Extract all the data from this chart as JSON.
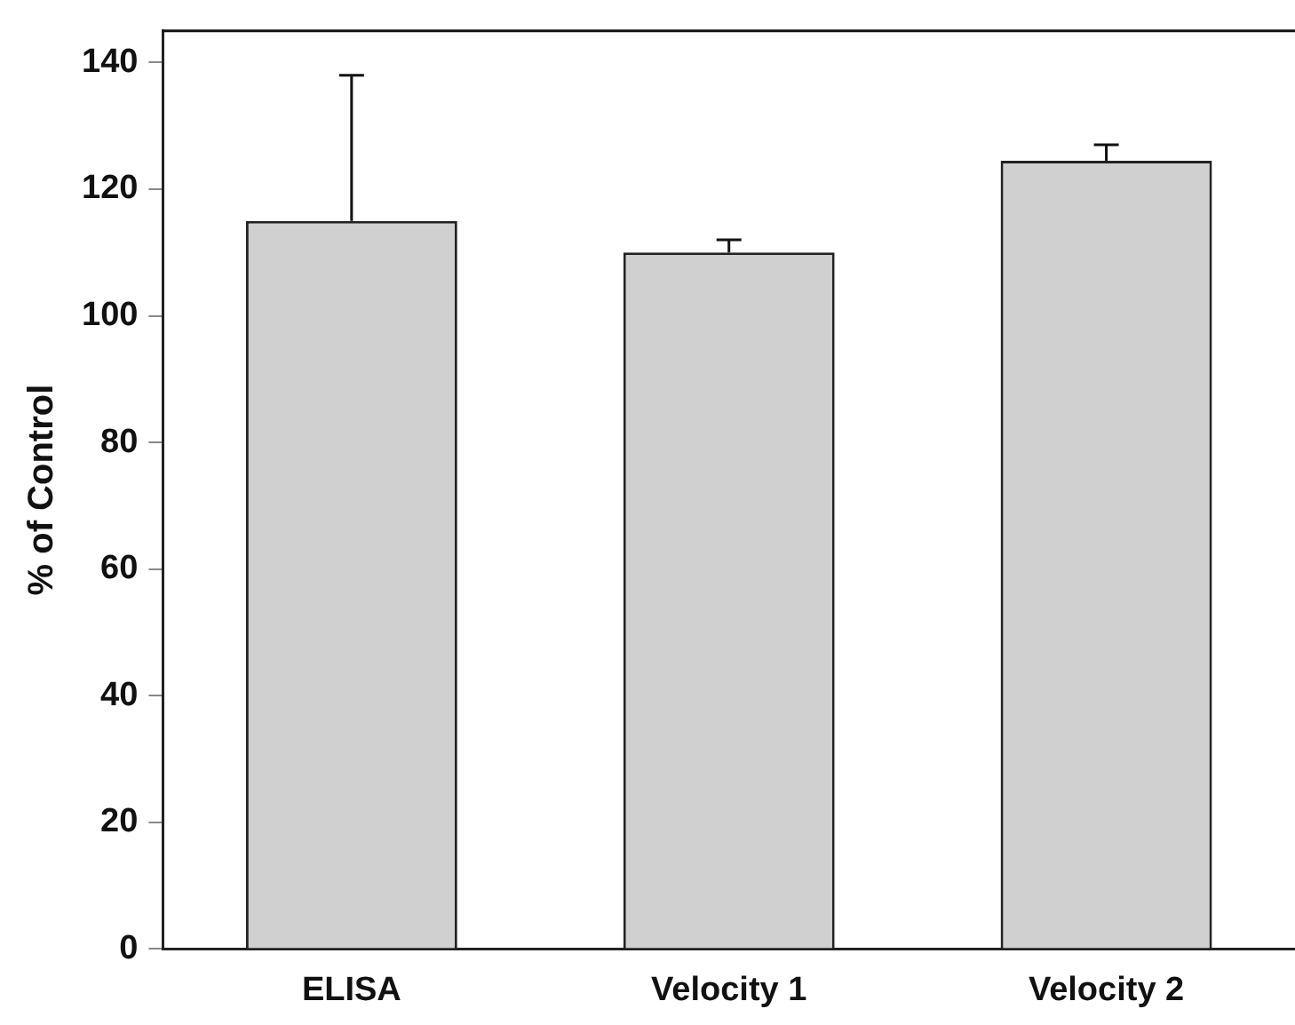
{
  "chart_data": {
    "type": "bar",
    "ylabel": "% of Control",
    "categories": [
      "ELISA",
      "Velocity 1",
      "Velocity 2"
    ],
    "values": [
      115,
      110,
      124.5
    ],
    "color": "#d0d0d0",
    "errors": [
      [
        115,
        138
      ],
      [
        110,
        112
      ],
      [
        124.5,
        127
      ]
    ],
    "ylim": [
      0,
      145
    ],
    "yticks": [
      0,
      20,
      40,
      60,
      80,
      100,
      120,
      140
    ],
    "grid": false,
    "legend": false
  }
}
